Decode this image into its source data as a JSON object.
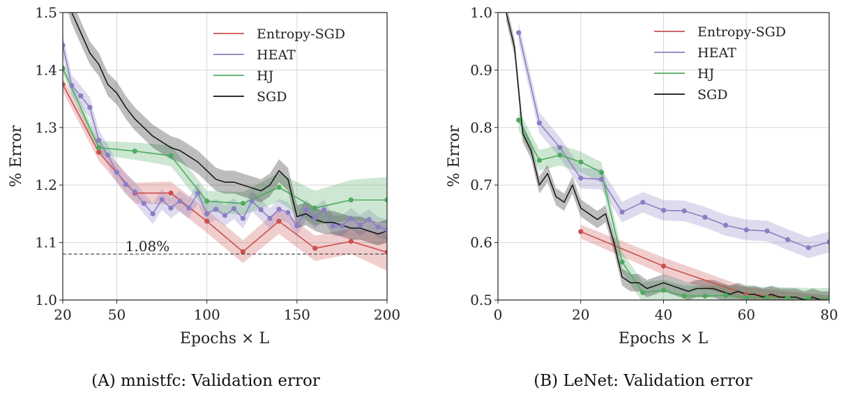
{
  "colors": {
    "Entropy-SGD": "#cc4f4f",
    "HEAT": "#8c7ec3",
    "HJ": "#4daa5f",
    "SGD": "#111111",
    "grid": "#d6d6d6"
  },
  "chart_data": [
    {
      "type": "line",
      "caption_letter": "(A)",
      "caption_text": "mnistfc: Validation error",
      "xlabel": "Epochs × L",
      "ylabel": "% Error",
      "xlim": [
        20,
        200
      ],
      "ylim": [
        1.0,
        1.5
      ],
      "xticks": [
        20,
        50,
        100,
        150,
        200
      ],
      "yticks": [
        1.0,
        1.1,
        1.2,
        1.3,
        1.4,
        1.5
      ],
      "ytick_labels": [
        "1.0",
        "1.1",
        "1.2",
        "1.3",
        "1.4",
        "1.5"
      ],
      "grid": true,
      "legend_position": "top-right",
      "hline": {
        "y": 1.08,
        "label": "1.08%",
        "style": "dashed"
      },
      "series": [
        {
          "name": "Entropy-SGD",
          "markers": true,
          "x": [
            20,
            40,
            60,
            80,
            100,
            120,
            140,
            160,
            180,
            200
          ],
          "y": [
            1.375,
            1.257,
            1.186,
            1.186,
            1.137,
            1.084,
            1.137,
            1.09,
            1.102,
            1.083
          ],
          "band": [
            0.012,
            0.015,
            0.018,
            0.02,
            0.02,
            0.02,
            0.022,
            0.022,
            0.022,
            0.032
          ]
        },
        {
          "name": "HEAT",
          "markers": true,
          "x": [
            20,
            25,
            30,
            35,
            40,
            45,
            50,
            55,
            60,
            65,
            70,
            75,
            80,
            85,
            90,
            95,
            100,
            105,
            110,
            115,
            120,
            125,
            130,
            135,
            140,
            145,
            150,
            155,
            160,
            165,
            170,
            175,
            180,
            185,
            190,
            195,
            200
          ],
          "y": [
            1.443,
            1.373,
            1.355,
            1.335,
            1.278,
            1.252,
            1.222,
            1.201,
            1.188,
            1.168,
            1.15,
            1.175,
            1.16,
            1.172,
            1.16,
            1.186,
            1.15,
            1.158,
            1.147,
            1.159,
            1.142,
            1.172,
            1.157,
            1.142,
            1.158,
            1.152,
            1.129,
            1.157,
            1.143,
            1.157,
            1.129,
            1.129,
            1.142,
            1.13,
            1.14,
            1.127,
            1.122
          ],
          "band": 0.018
        },
        {
          "name": "HJ",
          "markers": true,
          "x": [
            20,
            40,
            60,
            80,
            100,
            120,
            140,
            160,
            180,
            200
          ],
          "y": [
            1.403,
            1.265,
            1.259,
            1.251,
            1.172,
            1.168,
            1.196,
            1.16,
            1.174,
            1.174
          ],
          "band": [
            0.01,
            0.012,
            0.015,
            0.018,
            0.018,
            0.02,
            0.025,
            0.03,
            0.035,
            0.04
          ]
        },
        {
          "name": "SGD",
          "markers": false,
          "x": [
            20,
            25,
            30,
            35,
            40,
            45,
            50,
            55,
            60,
            65,
            70,
            75,
            80,
            85,
            90,
            95,
            100,
            105,
            110,
            115,
            120,
            125,
            130,
            135,
            140,
            145,
            150,
            155,
            160,
            165,
            170,
            175,
            180,
            185,
            190,
            195,
            200
          ],
          "y": [
            1.55,
            1.5,
            1.465,
            1.43,
            1.41,
            1.375,
            1.36,
            1.335,
            1.315,
            1.3,
            1.285,
            1.275,
            1.265,
            1.26,
            1.25,
            1.24,
            1.225,
            1.21,
            1.205,
            1.205,
            1.2,
            1.195,
            1.19,
            1.2,
            1.225,
            1.21,
            1.145,
            1.15,
            1.14,
            1.135,
            1.135,
            1.13,
            1.125,
            1.125,
            1.12,
            1.115,
            1.12
          ],
          "band": 0.02
        }
      ]
    },
    {
      "type": "line",
      "caption_letter": "(B)",
      "caption_text": "LeNet: Validation error",
      "xlabel": "Epochs × L",
      "ylabel": "% Error",
      "xlim": [
        0,
        80
      ],
      "ylim": [
        0.5,
        1.0
      ],
      "xticks": [
        0,
        20,
        40,
        60,
        80
      ],
      "yticks": [
        0.5,
        0.6,
        0.7,
        0.8,
        0.9,
        1.0
      ],
      "ytick_labels": [
        "0.5",
        "0.6",
        "0.7",
        "0.8",
        "0.9",
        "1.0"
      ],
      "grid": true,
      "legend_position": "top-right",
      "series": [
        {
          "name": "Entropy-SGD",
          "markers": true,
          "x": [
            20,
            40,
            60,
            80
          ],
          "y": [
            0.619,
            0.559,
            0.51,
            0.5
          ],
          "band": [
            0.012,
            0.015,
            0.012,
            0.008
          ]
        },
        {
          "name": "HEAT",
          "markers": true,
          "x": [
            5,
            10,
            15,
            20,
            25,
            30,
            35,
            40,
            45,
            50,
            55,
            60,
            65,
            70,
            75,
            80
          ],
          "y": [
            0.965,
            0.808,
            0.765,
            0.712,
            0.71,
            0.653,
            0.67,
            0.656,
            0.655,
            0.644,
            0.63,
            0.622,
            0.62,
            0.605,
            0.591,
            0.601
          ],
          "band": 0.018
        },
        {
          "name": "HJ",
          "markers": true,
          "x": [
            5,
            10,
            15,
            20,
            25,
            30,
            35,
            40,
            45,
            50,
            55,
            60,
            65,
            70,
            75,
            80
          ],
          "y": [
            0.813,
            0.743,
            0.752,
            0.74,
            0.722,
            0.566,
            0.513,
            0.517,
            0.507,
            0.507,
            0.508,
            0.505,
            0.505,
            0.504,
            0.503,
            0.503
          ],
          "band": 0.018
        },
        {
          "name": "SGD",
          "markers": false,
          "x": [
            2,
            4,
            6,
            8,
            10,
            12,
            14,
            16,
            18,
            20,
            22,
            24,
            26,
            28,
            30,
            32,
            34,
            36,
            38,
            40,
            42,
            44,
            46,
            48,
            50,
            52,
            54,
            56,
            58,
            60,
            62,
            64,
            66,
            68,
            70,
            72,
            74,
            76,
            78,
            80
          ],
          "y": [
            1.0,
            0.94,
            0.79,
            0.76,
            0.7,
            0.72,
            0.68,
            0.67,
            0.7,
            0.66,
            0.65,
            0.64,
            0.65,
            0.6,
            0.54,
            0.53,
            0.53,
            0.52,
            0.525,
            0.53,
            0.525,
            0.52,
            0.515,
            0.52,
            0.52,
            0.52,
            0.515,
            0.51,
            0.515,
            0.51,
            0.51,
            0.505,
            0.51,
            0.505,
            0.505,
            0.505,
            0.5,
            0.505,
            0.5,
            0.5
          ],
          "band": 0.015
        }
      ]
    }
  ]
}
